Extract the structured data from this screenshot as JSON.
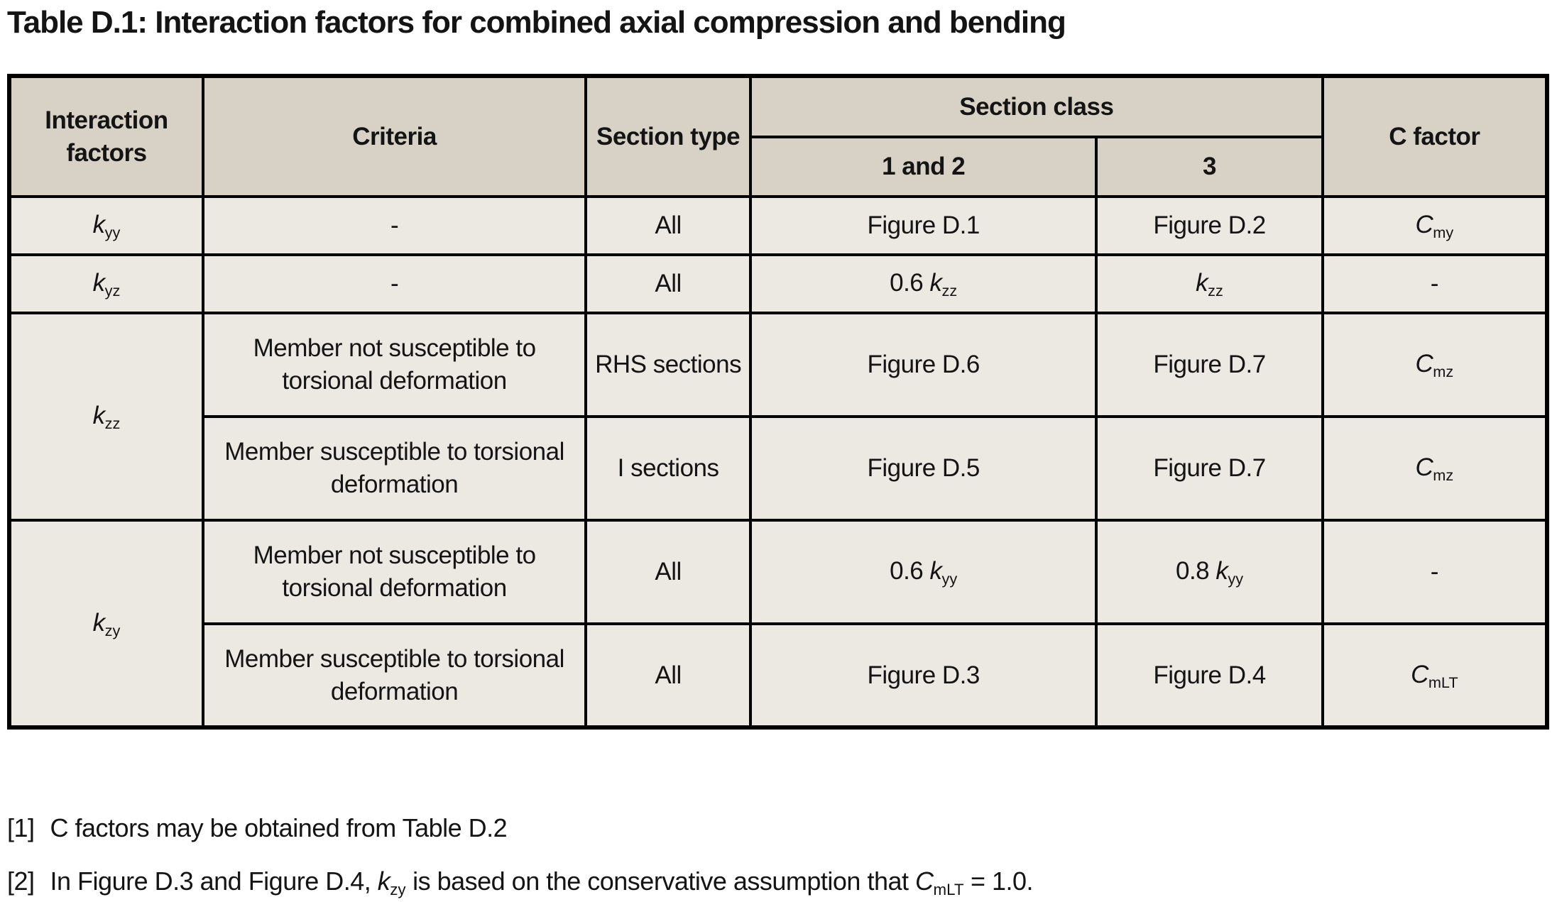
{
  "page": {
    "title": "Table D.1: Interaction factors for combined axial compression and bending"
  },
  "colors": {
    "header_bg": "#d8d2c6",
    "body_bg": "#ece9e2",
    "border": "#000000",
    "page_bg": "#ffffff",
    "text": "#141414"
  },
  "table": {
    "header": {
      "interaction_factors": "Interaction factors",
      "criteria": "Criteria",
      "section_type": "Section type",
      "section_class": "Section class",
      "class_1_2": "1 and 2",
      "class_3": "3",
      "c_factor": "C factor"
    },
    "rows": [
      {
        "cells": [
          {
            "col": "interaction-factor",
            "segs": [
              {
                "t": "k",
                "i": true
              },
              {
                "t": "yy",
                "s": true
              }
            ]
          },
          {
            "col": "criteria",
            "segs": [
              {
                "t": "-"
              }
            ]
          },
          {
            "col": "section-type",
            "segs": [
              {
                "t": "All"
              }
            ]
          },
          {
            "col": "class-1-2",
            "segs": [
              {
                "t": "Figure D.1"
              }
            ]
          },
          {
            "col": "class-3",
            "segs": [
              {
                "t": "Figure D.2"
              }
            ]
          },
          {
            "col": "c-factor",
            "segs": [
              {
                "t": "C",
                "i": true
              },
              {
                "t": "my",
                "s": true
              }
            ]
          }
        ]
      },
      {
        "cells": [
          {
            "col": "interaction-factor",
            "segs": [
              {
                "t": "k",
                "i": true
              },
              {
                "t": "yz",
                "s": true
              }
            ]
          },
          {
            "col": "criteria",
            "segs": [
              {
                "t": "-"
              }
            ]
          },
          {
            "col": "section-type",
            "segs": [
              {
                "t": "All"
              }
            ]
          },
          {
            "col": "class-1-2",
            "segs": [
              {
                "t": "0.6 "
              },
              {
                "t": "k",
                "i": true
              },
              {
                "t": "zz",
                "s": true
              }
            ]
          },
          {
            "col": "class-3",
            "segs": [
              {
                "t": "k",
                "i": true
              },
              {
                "t": "zz",
                "s": true
              }
            ]
          },
          {
            "col": "c-factor",
            "segs": [
              {
                "t": "-"
              }
            ]
          }
        ]
      },
      {
        "cells": [
          {
            "col": "interaction-factor",
            "rowspan": 2,
            "segs": [
              {
                "t": "k",
                "i": true
              },
              {
                "t": "zz",
                "s": true
              }
            ]
          },
          {
            "col": "criteria",
            "segs": [
              {
                "t": "Member not susceptible to torsional deformation"
              }
            ]
          },
          {
            "col": "section-type",
            "segs": [
              {
                "t": "RHS sections"
              }
            ]
          },
          {
            "col": "class-1-2",
            "segs": [
              {
                "t": "Figure D.6"
              }
            ]
          },
          {
            "col": "class-3",
            "segs": [
              {
                "t": "Figure D.7"
              }
            ]
          },
          {
            "col": "c-factor",
            "segs": [
              {
                "t": "C",
                "i": true
              },
              {
                "t": "mz",
                "s": true
              }
            ]
          }
        ]
      },
      {
        "cells": [
          {
            "col": "criteria",
            "segs": [
              {
                "t": "Member susceptible to torsional deformation"
              }
            ]
          },
          {
            "col": "section-type",
            "segs": [
              {
                "t": "I sections"
              }
            ]
          },
          {
            "col": "class-1-2",
            "segs": [
              {
                "t": "Figure D.5"
              }
            ]
          },
          {
            "col": "class-3",
            "segs": [
              {
                "t": "Figure D.7"
              }
            ]
          },
          {
            "col": "c-factor",
            "segs": [
              {
                "t": "C",
                "i": true
              },
              {
                "t": "mz",
                "s": true
              }
            ]
          }
        ]
      },
      {
        "cells": [
          {
            "col": "interaction-factor",
            "rowspan": 2,
            "segs": [
              {
                "t": "k",
                "i": true
              },
              {
                "t": "zy",
                "s": true
              }
            ]
          },
          {
            "col": "criteria",
            "segs": [
              {
                "t": "Member not susceptible to torsional deformation"
              }
            ]
          },
          {
            "col": "section-type",
            "segs": [
              {
                "t": "All"
              }
            ]
          },
          {
            "col": "class-1-2",
            "segs": [
              {
                "t": "0.6 "
              },
              {
                "t": "k",
                "i": true
              },
              {
                "t": "yy",
                "s": true
              }
            ]
          },
          {
            "col": "class-3",
            "segs": [
              {
                "t": "0.8 "
              },
              {
                "t": "k",
                "i": true
              },
              {
                "t": "yy",
                "s": true
              }
            ]
          },
          {
            "col": "c-factor",
            "segs": [
              {
                "t": "-"
              }
            ]
          }
        ]
      },
      {
        "cells": [
          {
            "col": "criteria",
            "segs": [
              {
                "t": "Member susceptible to torsional deformation"
              }
            ]
          },
          {
            "col": "section-type",
            "segs": [
              {
                "t": "All"
              }
            ]
          },
          {
            "col": "class-1-2",
            "segs": [
              {
                "t": "Figure D.3"
              }
            ]
          },
          {
            "col": "class-3",
            "segs": [
              {
                "t": "Figure D.4"
              }
            ]
          },
          {
            "col": "c-factor",
            "segs": [
              {
                "t": "C",
                "i": true
              },
              {
                "t": "mLT",
                "s": true
              }
            ]
          }
        ]
      }
    ]
  },
  "footnotes": [
    {
      "label": "[1]",
      "segs": [
        {
          "t": "C factors may be obtained from Table D.2"
        }
      ]
    },
    {
      "label": "[2]",
      "segs": [
        {
          "t": "In Figure D.3 and Figure D.4, "
        },
        {
          "t": "k",
          "i": true
        },
        {
          "t": "zy",
          "s": true
        },
        {
          "t": " is based on the conservative assumption that "
        },
        {
          "t": "C",
          "i": true
        },
        {
          "t": "mLT",
          "s": true
        },
        {
          "t": " = 1.0."
        }
      ]
    }
  ]
}
